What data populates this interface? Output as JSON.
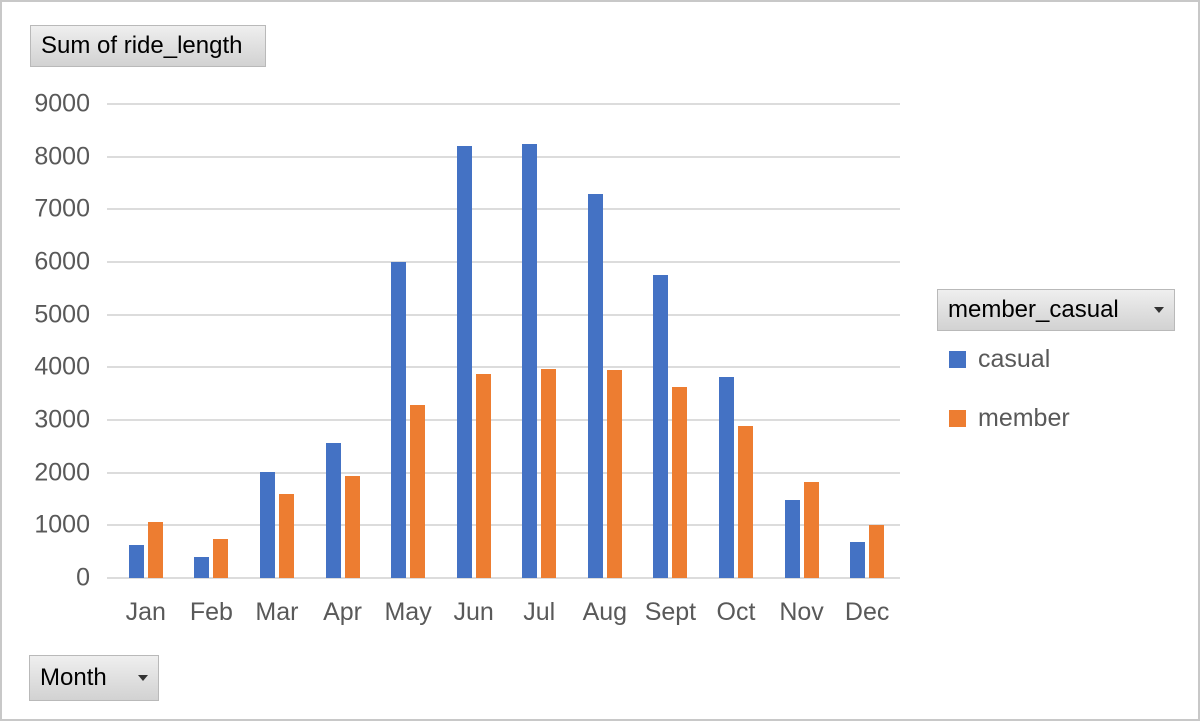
{
  "field_buttons": {
    "values_label": "Sum of ride_length",
    "legend_label": "member_casual",
    "axis_label": "Month"
  },
  "legend": {
    "title": "member_casual",
    "items": [
      {
        "label": "casual",
        "color": "#4472C4"
      },
      {
        "label": "member",
        "color": "#ED7D31"
      }
    ]
  },
  "chart_data": {
    "type": "bar",
    "title": "Sum of ride_length",
    "categories": [
      "Jan",
      "Feb",
      "Mar",
      "Apr",
      "May",
      "Jun",
      "Jul",
      "Aug",
      "Sept",
      "Oct",
      "Nov",
      "Dec"
    ],
    "series": [
      {
        "name": "casual",
        "color": "#4472C4",
        "values": [
          630,
          400,
          2020,
          2570,
          6000,
          8210,
          8240,
          7290,
          5760,
          3810,
          1480,
          690
        ]
      },
      {
        "name": "member",
        "color": "#ED7D31",
        "values": [
          1060,
          740,
          1600,
          1930,
          3280,
          3880,
          3970,
          3950,
          3620,
          2880,
          1820,
          1000
        ]
      }
    ],
    "xlabel": "Month",
    "ylabel": "",
    "ylim": [
      0,
      9000
    ],
    "yticks": [
      0,
      1000,
      2000,
      3000,
      4000,
      5000,
      6000,
      7000,
      8000,
      9000
    ],
    "grid": true,
    "legend_position": "right"
  },
  "colors": {
    "bar_casual": "#4472C4",
    "bar_member": "#ED7D31",
    "gridline": "#dcdcdc",
    "axis_text": "#595959",
    "outer_border": "#c8c8c8"
  }
}
